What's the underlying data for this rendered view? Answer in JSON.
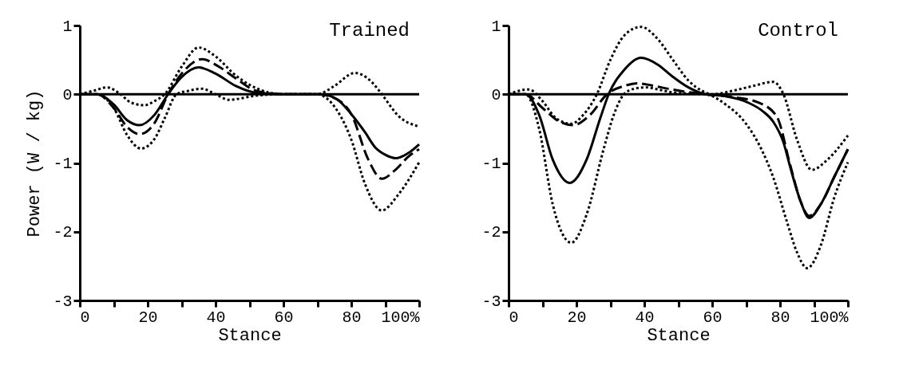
{
  "chart_data": [
    {
      "type": "line",
      "title": "Trained",
      "xlabel": "Stance",
      "ylabel": "Power (W / kg)",
      "xlim": [
        0,
        100
      ],
      "ylim": [
        -3,
        1
      ],
      "xticks": [
        0,
        {
          "value": 10,
          "label": null
        },
        20,
        {
          "value": 30,
          "label": null
        },
        40,
        {
          "value": 50,
          "label": null
        },
        60,
        {
          "value": 70,
          "label": null
        },
        80,
        {
          "value": 90,
          "label": null
        },
        {
          "value": 100,
          "label": "100%"
        }
      ],
      "yticks": [
        -3,
        -2,
        -1,
        0,
        1
      ],
      "grid": false,
      "marker": "none",
      "ref_lines": [
        {
          "axis": "y",
          "value": 0,
          "color": "#000000"
        }
      ],
      "series": [
        {
          "color": "#000000",
          "line_style": "solid",
          "x": [
            0,
            5,
            10,
            14,
            17.6,
            22,
            26,
            30,
            35,
            40,
            46,
            52,
            60,
            71,
            76,
            80,
            84,
            87,
            90,
            93,
            97,
            100
          ],
          "values": [
            0,
            0,
            -0.15,
            -0.38,
            -0.45,
            -0.3,
            0,
            0.25,
            0.39,
            0.3,
            0.12,
            0.02,
            0,
            0,
            -0.08,
            -0.29,
            -0.55,
            -0.77,
            -0.88,
            -0.93,
            -0.85,
            -0.73
          ]
        },
        {
          "color": "#000000",
          "line_style": "dashed",
          "x": [
            0,
            5,
            10,
            14,
            17.6,
            22,
            26,
            30,
            36,
            41,
            46,
            52,
            60,
            70,
            76,
            80,
            85,
            89,
            93,
            97,
            100
          ],
          "values": [
            0,
            0,
            -0.2,
            -0.48,
            -0.58,
            -0.42,
            0,
            0.3,
            0.51,
            0.4,
            0.23,
            0.05,
            0,
            0,
            -0.08,
            -0.29,
            -0.95,
            -1.23,
            -1.1,
            -0.9,
            -0.8
          ]
        },
        {
          "color": "#000000",
          "line_style": "dotted",
          "x": [
            0,
            4,
            8,
            12,
            15,
            19,
            22,
            25,
            30,
            35,
            40,
            46,
            54,
            60,
            70,
            75,
            81,
            86,
            89,
            94,
            100
          ],
          "values": [
            0,
            0.05,
            0.1,
            0.0,
            -0.12,
            -0.16,
            -0.1,
            0,
            0.4,
            0.68,
            0.55,
            0.27,
            0.05,
            0,
            0,
            0.12,
            0.31,
            0.18,
            0,
            -0.32,
            -0.47
          ]
        },
        {
          "color": "#000000",
          "line_style": "dotted",
          "x": [
            0,
            5,
            10,
            14,
            18,
            22,
            25,
            28.5,
            32,
            36,
            40,
            44,
            52,
            60,
            70,
            72.5,
            76,
            80,
            84,
            89,
            94,
            100
          ],
          "values": [
            0,
            0,
            -0.2,
            -0.6,
            -0.79,
            -0.65,
            -0.35,
            0,
            0.05,
            0.08,
            0.0,
            -0.08,
            -0.02,
            0,
            0,
            -0.05,
            -0.25,
            -0.66,
            -1.3,
            -1.69,
            -1.45,
            -0.99
          ]
        }
      ]
    },
    {
      "type": "line",
      "title": "Control",
      "xlabel": "Stance",
      "xlim": [
        0,
        100
      ],
      "ylim": [
        -3,
        1
      ],
      "xticks": [
        0,
        {
          "value": 10,
          "label": null
        },
        20,
        {
          "value": 30,
          "label": null
        },
        40,
        {
          "value": 50,
          "label": null
        },
        60,
        {
          "value": 70,
          "label": null
        },
        80,
        {
          "value": 90,
          "label": null
        },
        {
          "value": 100,
          "label": "100%"
        }
      ],
      "yticks": [
        -3,
        -2,
        -1,
        0,
        1
      ],
      "grid": false,
      "marker": "none",
      "ref_lines": [
        {
          "axis": "y",
          "value": 0,
          "color": "#000000"
        }
      ],
      "series": [
        {
          "color": "#000000",
          "line_style": "solid",
          "x": [
            0,
            5,
            9,
            13,
            18,
            23,
            27,
            29.5,
            34,
            39,
            44,
            48,
            53,
            58,
            64,
            70.5,
            75,
            78,
            81,
            83,
            86,
            88.6,
            92,
            96,
            100
          ],
          "values": [
            0,
            0,
            -0.3,
            -0.95,
            -1.29,
            -0.95,
            -0.35,
            0,
            0.35,
            0.53,
            0.43,
            0.27,
            0.1,
            0,
            -0.03,
            -0.12,
            -0.25,
            -0.4,
            -0.7,
            -1.06,
            -1.55,
            -1.8,
            -1.6,
            -1.2,
            -0.8
          ]
        },
        {
          "color": "#000000",
          "line_style": "dashed",
          "x": [
            0,
            5,
            10,
            15,
            19,
            24,
            29,
            34,
            38,
            42,
            47,
            53,
            58,
            66,
            73.6,
            79,
            83,
            86,
            88.6,
            92,
            96,
            100
          ],
          "values": [
            0,
            0,
            -0.2,
            -0.4,
            -0.45,
            -0.3,
            0,
            0.12,
            0.16,
            0.13,
            0.08,
            0.03,
            0,
            -0.04,
            -0.12,
            -0.32,
            -1.03,
            -1.55,
            -1.77,
            -1.6,
            -1.2,
            -0.8
          ]
        },
        {
          "color": "#000000",
          "line_style": "dotted",
          "x": [
            0,
            3,
            6,
            10,
            14,
            18.5,
            22,
            26,
            30,
            34,
            39,
            44,
            48,
            53,
            57,
            60,
            66,
            72,
            78,
            81,
            85,
            89.4,
            94,
            100
          ],
          "values": [
            0,
            0.05,
            0.07,
            -0.1,
            -0.35,
            -0.43,
            -0.3,
            0,
            0.5,
            0.85,
            0.98,
            0.8,
            0.53,
            0.2,
            0.05,
            0,
            0.05,
            0.12,
            0.18,
            0,
            -0.66,
            -1.1,
            -0.95,
            -0.6
          ]
        },
        {
          "color": "#000000",
          "line_style": "dotted",
          "x": [
            0,
            5,
            9,
            13,
            18.5,
            23,
            28,
            31,
            34,
            37,
            40.5,
            44,
            48,
            53,
            58,
            64,
            70,
            74,
            78,
            82,
            85,
            88,
            92,
            96,
            100
          ],
          "values": [
            0,
            0,
            -0.5,
            -1.6,
            -2.16,
            -1.75,
            -0.8,
            -0.3,
            0,
            0.08,
            0.1,
            0.07,
            0.03,
            0.01,
            0,
            -0.15,
            -0.43,
            -0.75,
            -1.21,
            -1.85,
            -2.3,
            -2.53,
            -2.2,
            -1.5,
            -0.99
          ]
        }
      ]
    }
  ]
}
